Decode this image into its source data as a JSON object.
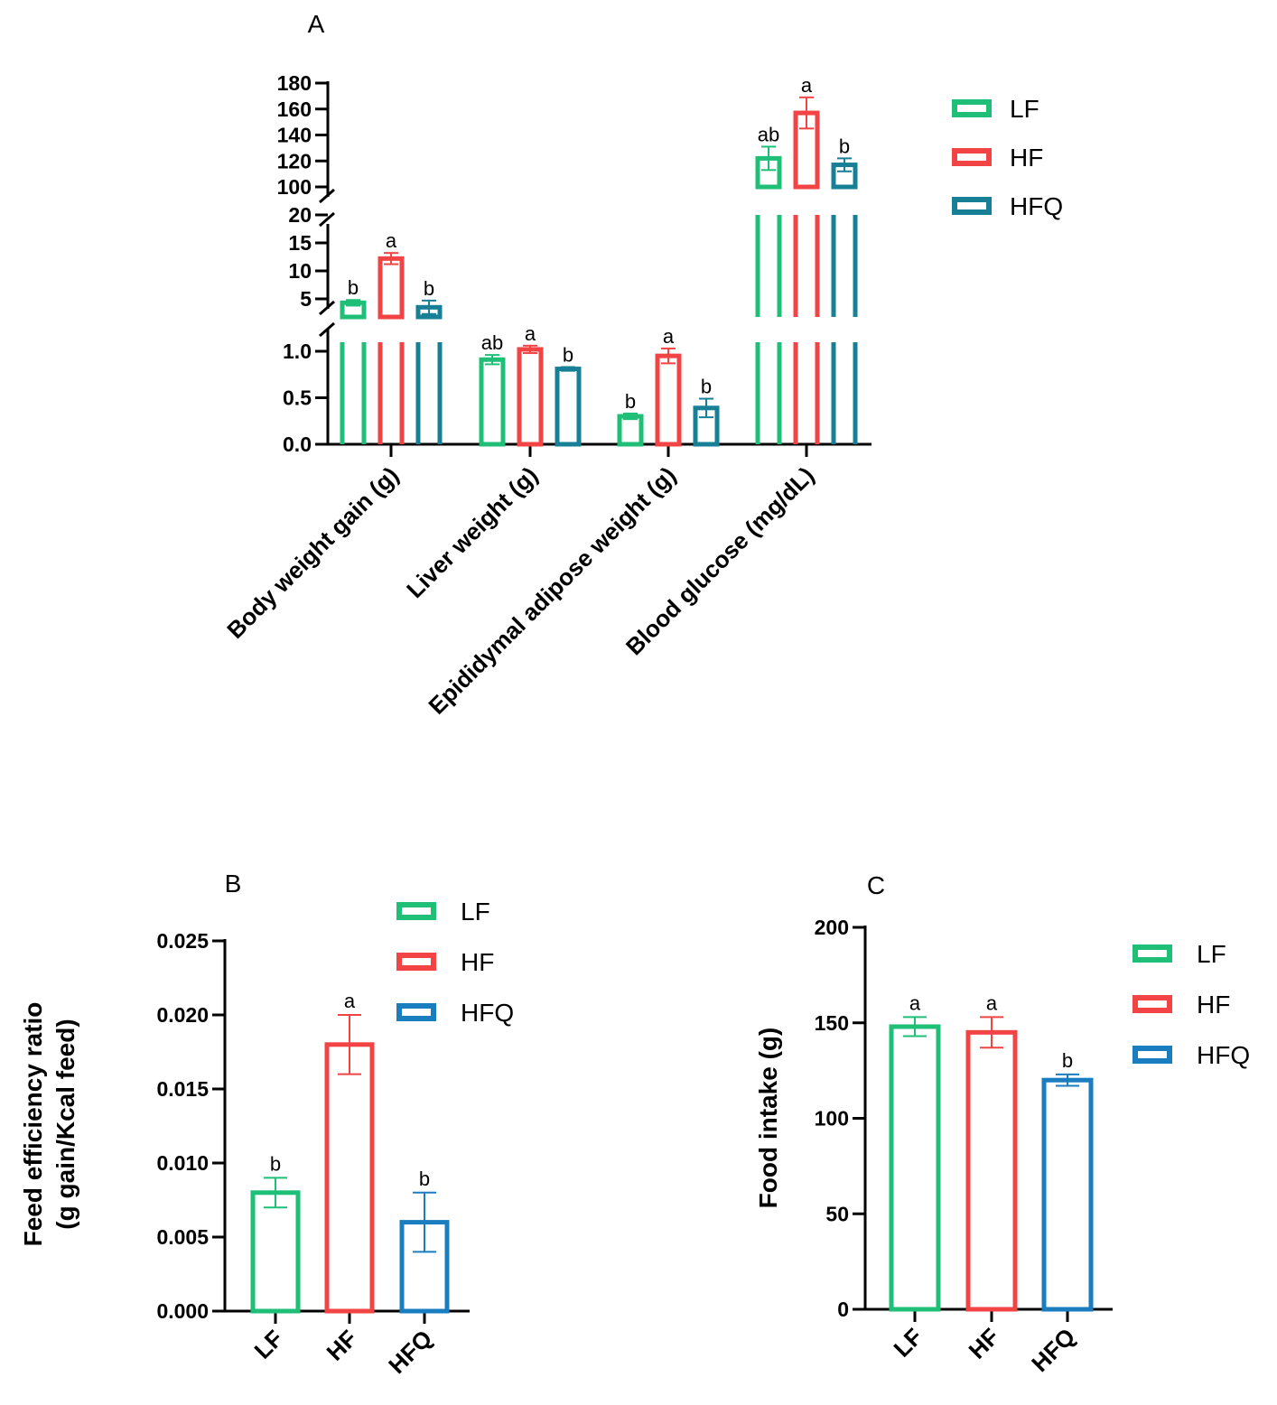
{
  "chart_data": [
    {
      "panel": "A",
      "type": "bar",
      "categories": [
        "Body weight gain (g)",
        "Liver weight (g)",
        "Epididymal adipose weight (g)",
        "Blood glucose (mg/dL)"
      ],
      "series": [
        {
          "name": "LF",
          "color": "#1fbf77",
          "values": [
            4.3,
            0.91,
            0.3,
            122
          ],
          "errors": [
            0.5,
            0.05,
            0.03,
            9
          ],
          "letters": [
            "b",
            "ab",
            "b",
            "ab"
          ]
        },
        {
          "name": "HF",
          "color": "#f24444",
          "values": [
            12.2,
            1.02,
            0.95,
            157
          ],
          "errors": [
            1.0,
            0.04,
            0.08,
            12
          ],
          "letters": [
            "a",
            "a",
            "a",
            "a"
          ]
        },
        {
          "name": "HFQ",
          "color": "#177f96",
          "values": [
            3.5,
            0.81,
            0.39,
            117
          ],
          "errors": [
            1.2,
            0.02,
            0.1,
            5
          ],
          "letters": [
            "b",
            "b",
            "b",
            "b"
          ]
        }
      ],
      "y_segments": [
        {
          "range": [
            0,
            1.2
          ],
          "ticks": [
            "0.0",
            "0.5",
            "1.0"
          ],
          "tick_values": [
            0,
            0.5,
            1.0
          ]
        },
        {
          "range": [
            2,
            20
          ],
          "ticks": [
            "5",
            "10",
            "15",
            "20"
          ],
          "tick_values": [
            5,
            10,
            15,
            20
          ]
        },
        {
          "range": [
            100,
            180
          ],
          "ticks": [
            "100",
            "120",
            "140",
            "160",
            "180"
          ],
          "tick_values": [
            100,
            120,
            140,
            160,
            180
          ]
        }
      ],
      "legend": [
        "LF",
        "HF",
        "HFQ"
      ],
      "legend_position": "top-right"
    },
    {
      "panel": "B",
      "type": "bar",
      "categories": [
        "LF",
        "HF",
        "HFQ"
      ],
      "values": [
        0.008,
        0.018,
        0.006
      ],
      "errors": [
        0.001,
        0.002,
        0.002
      ],
      "letters": [
        "b",
        "a",
        "b"
      ],
      "colors": [
        "#1fbf77",
        "#f24444",
        "#1a7dc0"
      ],
      "ylabel": [
        "Feed efficiency ratio",
        "(g gain/Kcal feed)"
      ],
      "ylim": [
        0,
        0.025
      ],
      "yticks": [
        "0.000",
        "0.005",
        "0.010",
        "0.015",
        "0.020",
        "0.025"
      ],
      "ytick_values": [
        0,
        0.005,
        0.01,
        0.015,
        0.02,
        0.025
      ],
      "legend": [
        "LF",
        "HF",
        "HFQ"
      ],
      "legend_position": "top-right"
    },
    {
      "panel": "C",
      "type": "bar",
      "categories": [
        "LF",
        "HF",
        "HFQ"
      ],
      "values": [
        148,
        145,
        120
      ],
      "errors": [
        5,
        8,
        3
      ],
      "letters": [
        "a",
        "a",
        "b"
      ],
      "colors": [
        "#1fbf77",
        "#f24444",
        "#1a7dc0"
      ],
      "ylabel": "Food intake (g)",
      "ylim": [
        0,
        200
      ],
      "yticks": [
        "0",
        "50",
        "100",
        "150",
        "200"
      ],
      "ytick_values": [
        0,
        50,
        100,
        150,
        200
      ],
      "legend": [
        "LF",
        "HF",
        "HFQ"
      ],
      "legend_position": "top-right"
    }
  ]
}
